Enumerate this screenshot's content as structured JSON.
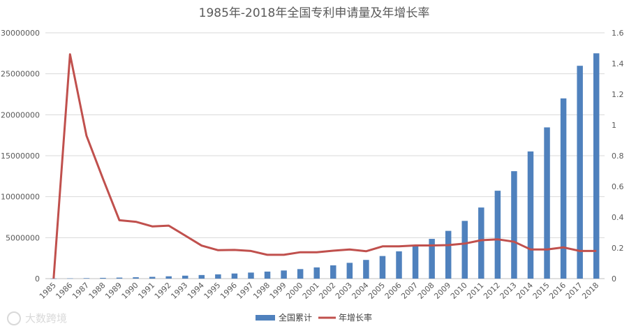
{
  "chart_data": {
    "type": "bar",
    "title": "1985年-2018年全国专利申请量及年增长率",
    "categories": [
      "1985",
      "1986",
      "1987",
      "1988",
      "1989",
      "1990",
      "1991",
      "1992",
      "1993",
      "1994",
      "1995",
      "1996",
      "1997",
      "1998",
      "1999",
      "2000",
      "2001",
      "2002",
      "2003",
      "2004",
      "2005",
      "2006",
      "2007",
      "2008",
      "2009",
      "2010",
      "2011",
      "2012",
      "2013",
      "2014",
      "2015",
      "2016",
      "2017",
      "2018"
    ],
    "series": [
      {
        "name": "全国累计",
        "type": "bar",
        "axis": "left",
        "color": "#4f81bd",
        "values": [
          14372,
          32655,
          58674,
          92696,
          125189,
          166670,
          216730,
          284235,
          361336,
          438830,
          521840,
          624240,
          738380,
          859870,
          994200,
          1164400,
          1367800,
          1620300,
          1928700,
          2282400,
          2759300,
          3329500,
          4023500,
          4851400,
          5828700,
          7045800,
          8679200,
          10728600,
          13113700,
          15522400,
          18458200,
          21997200,
          25977400,
          27500000
        ]
      },
      {
        "name": "年增长率",
        "type": "line",
        "axis": "right",
        "color": "#c0504d",
        "values": [
          0,
          1.46,
          0.93,
          0.65,
          0.38,
          0.37,
          0.34,
          0.345,
          0.28,
          0.215,
          0.185,
          0.187,
          0.18,
          0.155,
          0.155,
          0.172,
          0.172,
          0.182,
          0.19,
          0.178,
          0.21,
          0.21,
          0.216,
          0.216,
          0.218,
          0.228,
          0.25,
          0.256,
          0.24,
          0.19,
          0.19,
          0.203,
          0.18,
          0.18
        ]
      }
    ],
    "y_left": {
      "min": 0,
      "max": 30000000,
      "ticks": [
        "0",
        "5000000",
        "10000000",
        "15000000",
        "20000000",
        "25000000",
        "30000000"
      ],
      "tick_values": [
        0,
        5000000,
        10000000,
        15000000,
        20000000,
        25000000,
        30000000
      ]
    },
    "y_right": {
      "min": 0,
      "max": 1.6,
      "ticks": [
        "0",
        "0.2",
        "0.4",
        "0.6",
        "0.8",
        "1",
        "1.2",
        "1.4",
        "1.6"
      ],
      "tick_values": [
        0,
        0.2,
        0.4,
        0.6,
        0.8,
        1,
        1.2,
        1.4,
        1.6
      ]
    },
    "grid": true,
    "legend_position": "bottom"
  },
  "watermark": "大数跨境"
}
